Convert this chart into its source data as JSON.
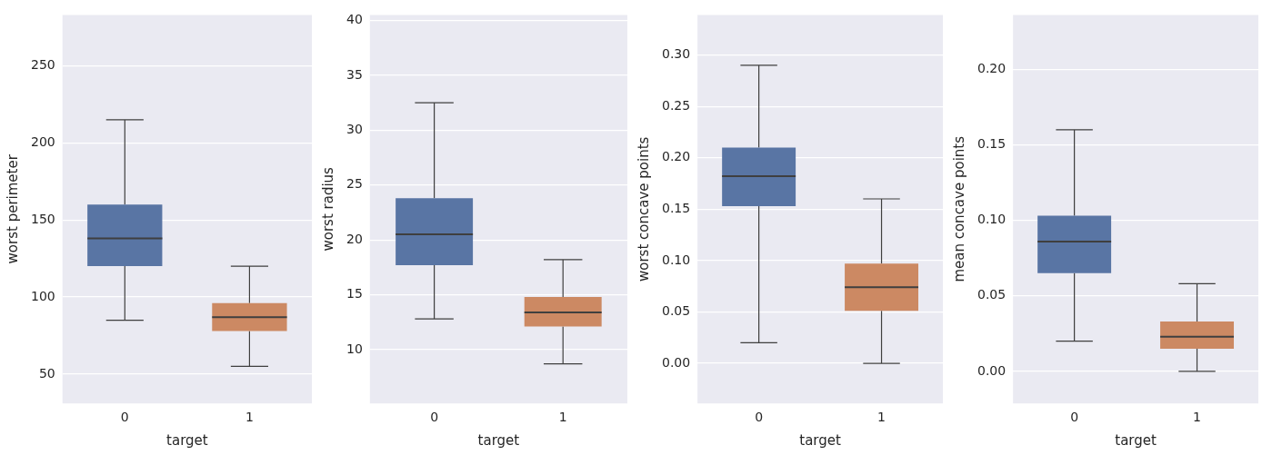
{
  "chart_data": [
    {
      "type": "box",
      "xlabel": "target",
      "ylabel": "worst perimeter",
      "categories": [
        "0",
        "1"
      ],
      "colors": [
        "#5975a4",
        "#cc8963"
      ],
      "grid": "y",
      "ylim": [
        31,
        283
      ],
      "yticks": [
        50,
        100,
        150,
        200,
        250
      ],
      "boxes": [
        {
          "low": 85,
          "q1": 120,
          "median": 138,
          "q3": 160,
          "high": 215
        },
        {
          "low": 55,
          "q1": 78,
          "median": 87,
          "q3": 96,
          "high": 120
        }
      ]
    },
    {
      "type": "box",
      "xlabel": "target",
      "ylabel": "worst radius",
      "categories": [
        "0",
        "1"
      ],
      "colors": [
        "#5975a4",
        "#cc8963"
      ],
      "grid": "y",
      "ylim": [
        5.1,
        40.5
      ],
      "yticks": [
        10,
        15,
        20,
        25,
        30,
        35,
        40
      ],
      "boxes": [
        {
          "low": 12.8,
          "q1": 17.7,
          "median": 20.5,
          "q3": 23.8,
          "high": 32.5
        },
        {
          "low": 8.7,
          "q1": 12.1,
          "median": 13.4,
          "q3": 14.8,
          "high": 18.2
        }
      ]
    },
    {
      "type": "box",
      "xlabel": "target",
      "ylabel": "worst concave points",
      "categories": [
        "0",
        "1"
      ],
      "colors": [
        "#5975a4",
        "#cc8963"
      ],
      "grid": "y",
      "ylim": [
        -0.039,
        0.339
      ],
      "yticks": [
        {
          "value": 0,
          "label": "0.00"
        },
        {
          "value": 0.05,
          "label": "0.05"
        },
        {
          "value": 0.1,
          "label": "0.10"
        },
        {
          "value": 0.15,
          "label": "0.15"
        },
        {
          "value": 0.2,
          "label": "0.20"
        },
        {
          "value": 0.25,
          "label": "0.25"
        },
        {
          "value": 0.3,
          "label": "0.30"
        }
      ],
      "boxes": [
        {
          "low": 0.02,
          "q1": 0.153,
          "median": 0.182,
          "q3": 0.21,
          "high": 0.29
        },
        {
          "low": 0,
          "q1": 0.051,
          "median": 0.074,
          "q3": 0.097,
          "high": 0.16
        }
      ]
    },
    {
      "type": "box",
      "xlabel": "target",
      "ylabel": "mean concave points",
      "categories": [
        "0",
        "1"
      ],
      "colors": [
        "#5975a4",
        "#cc8963"
      ],
      "grid": "y",
      "ylim": [
        -0.0212,
        0.236
      ],
      "yticks": [
        {
          "value": 0,
          "label": "0.00"
        },
        {
          "value": 0.05,
          "label": "0.05"
        },
        {
          "value": 0.1,
          "label": "0.10"
        },
        {
          "value": 0.15,
          "label": "0.15"
        },
        {
          "value": 0.2,
          "label": "0.20"
        }
      ],
      "boxes": [
        {
          "low": 0.02,
          "q1": 0.065,
          "median": 0.086,
          "q3": 0.103,
          "high": 0.16
        },
        {
          "low": 0,
          "q1": 0.015,
          "median": 0.023,
          "q3": 0.033,
          "high": 0.058
        }
      ]
    }
  ]
}
